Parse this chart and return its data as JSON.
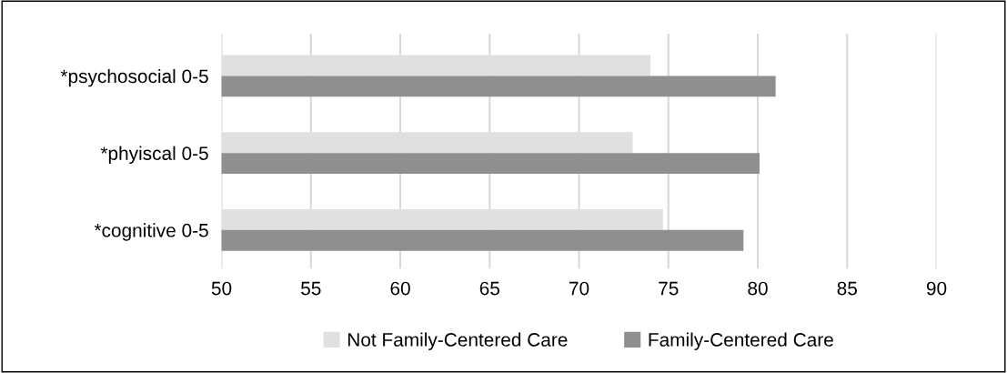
{
  "chart_data": {
    "type": "bar",
    "orientation": "horizontal",
    "categories": [
      "*psychosocial 0-5",
      "*phyiscal 0-5",
      "*cognitive 0-5"
    ],
    "series": [
      {
        "name": "Not Family-Centered Care",
        "color": "#e0e0e0",
        "values": [
          74.0,
          73.0,
          74.7
        ]
      },
      {
        "name": "Family-Centered Care",
        "color": "#8f8f8f",
        "values": [
          81.0,
          80.1,
          79.2
        ]
      }
    ],
    "xlim": [
      50,
      90
    ],
    "xticks": [
      50,
      55,
      60,
      65,
      70,
      75,
      80,
      85,
      90
    ],
    "grid": "x",
    "legend": "bottom"
  }
}
